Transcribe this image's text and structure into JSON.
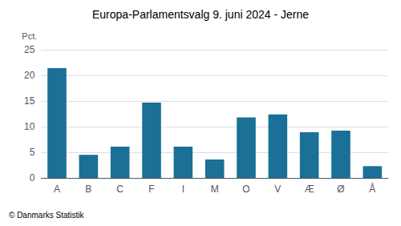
{
  "chart_data": {
    "type": "bar",
    "title": "Europa-Parlamentsvalg 9. juni 2024 - Jerne",
    "ylabel": "Pct.",
    "footer": "© Danmarks Statistik",
    "categories": [
      "A",
      "B",
      "C",
      "F",
      "I",
      "M",
      "O",
      "V",
      "Æ",
      "Ø",
      "Å"
    ],
    "values": [
      21.4,
      4.5,
      6.1,
      14.7,
      6.1,
      3.6,
      11.8,
      12.4,
      8.9,
      9.2,
      2.3
    ],
    "color": "#1a7096",
    "ylim": [
      0,
      25
    ],
    "yticks": [
      0,
      5,
      10,
      15,
      20,
      25
    ],
    "grid": true
  }
}
